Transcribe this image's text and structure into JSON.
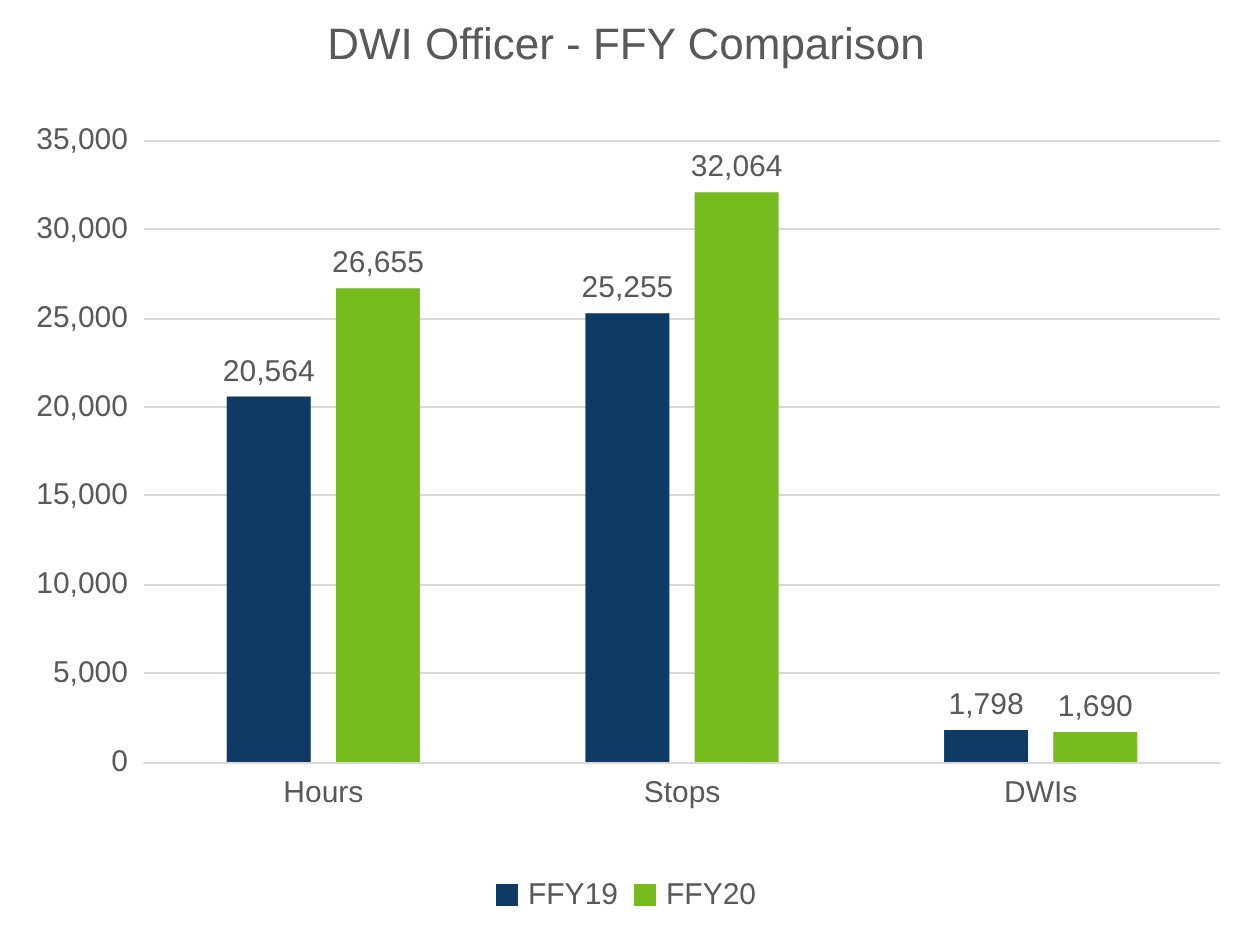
{
  "chart_data": {
    "type": "bar",
    "title": "DWI Officer - FFY Comparison",
    "categories": [
      "Hours",
      "Stops",
      "DWIs"
    ],
    "series": [
      {
        "name": "FFY19",
        "color": "#0e3a63",
        "values": [
          20564,
          25255,
          1798
        ],
        "value_labels": [
          "20,564",
          "25,255",
          "1,798"
        ]
      },
      {
        "name": "FFY20",
        "color": "#77bc1f",
        "values": [
          26655,
          32064,
          1690
        ],
        "value_labels": [
          "26,655",
          "32,064",
          "1,690"
        ]
      }
    ],
    "ylim": [
      0,
      35000
    ],
    "yticks": [
      {
        "value": 0,
        "label": "0"
      },
      {
        "value": 5000,
        "label": "5,000"
      },
      {
        "value": 10000,
        "label": "10,000"
      },
      {
        "value": 15000,
        "label": "15,000"
      },
      {
        "value": 20000,
        "label": "20,000"
      },
      {
        "value": 25000,
        "label": "25,000"
      },
      {
        "value": 30000,
        "label": "30,000"
      },
      {
        "value": 35000,
        "label": "35,000"
      }
    ],
    "grid": "y",
    "legend": "bottom"
  }
}
